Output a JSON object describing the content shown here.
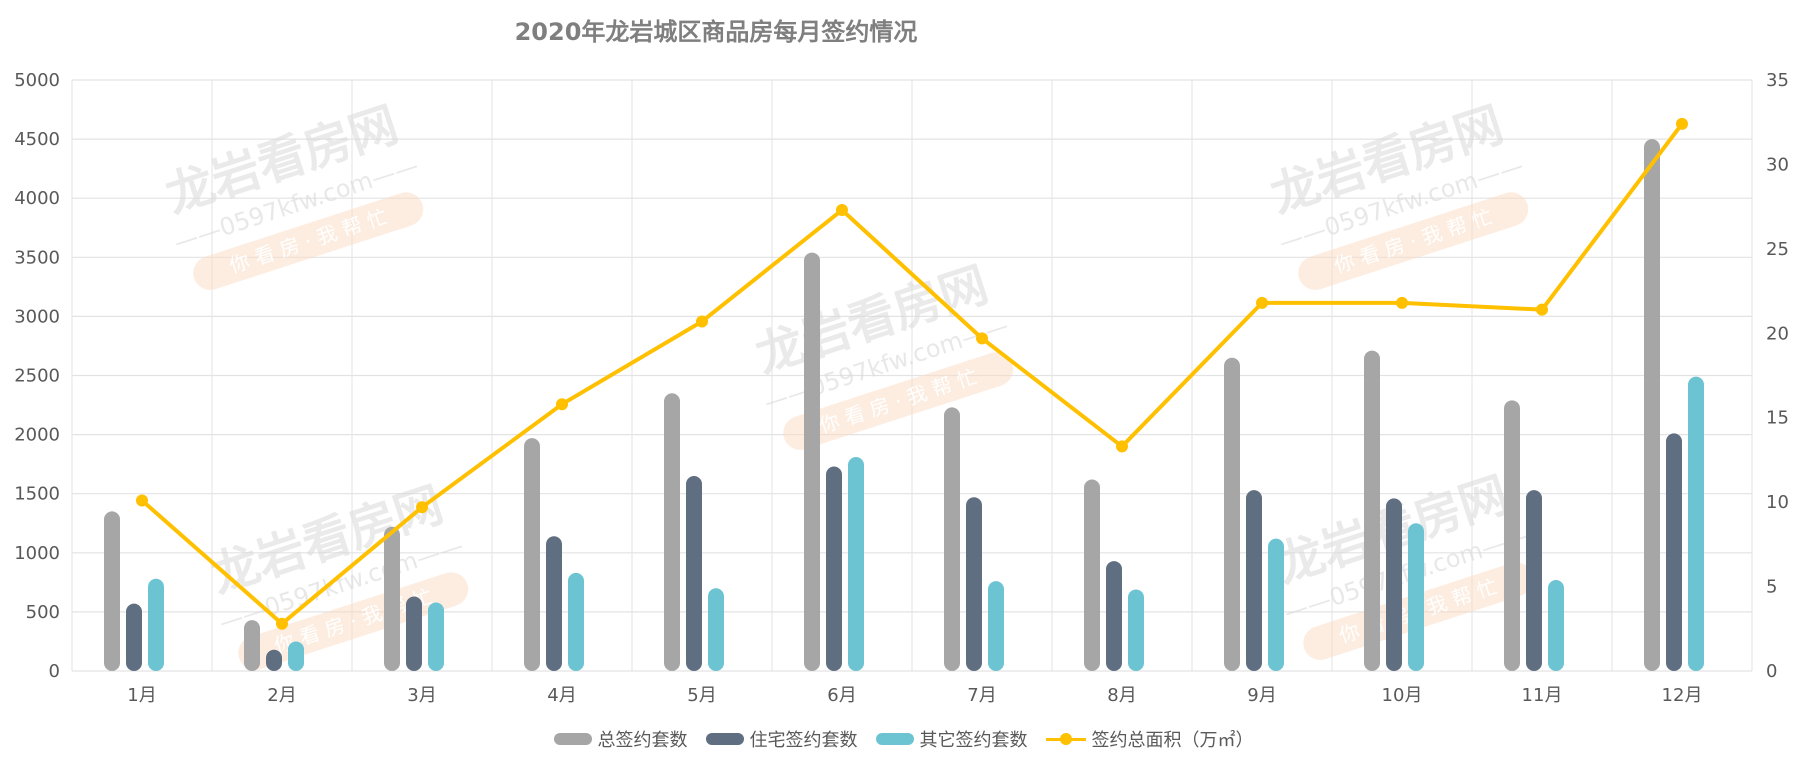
{
  "chart_data": {
    "type": "bar",
    "title": "2020年龙岩城区商品房每月签约情况",
    "categories": [
      "1月",
      "2月",
      "3月",
      "4月",
      "5月",
      "6月",
      "7月",
      "8月",
      "9月",
      "10月",
      "11月",
      "12月"
    ],
    "series": [
      {
        "name": "总签约套数",
        "type": "bar",
        "axis": "left",
        "color": "#A6A6A6",
        "values": [
          1350,
          430,
          1220,
          1970,
          2350,
          3540,
          2230,
          1620,
          2650,
          2710,
          2290,
          4500
        ]
      },
      {
        "name": "住宅签约套数",
        "type": "bar",
        "axis": "left",
        "color": "#5F6E80",
        "values": [
          570,
          180,
          630,
          1140,
          1650,
          1730,
          1470,
          930,
          1530,
          1460,
          1530,
          2010
        ]
      },
      {
        "name": "其它签约套数",
        "type": "bar",
        "axis": "left",
        "color": "#6CC4D2",
        "values": [
          780,
          250,
          580,
          830,
          700,
          1810,
          760,
          690,
          1120,
          1250,
          770,
          2490
        ]
      },
      {
        "name": "签约总面积（万㎡）",
        "type": "line",
        "axis": "right",
        "color": "#FFC000",
        "values": [
          10.1,
          2.8,
          9.7,
          15.8,
          20.7,
          27.3,
          19.7,
          13.3,
          21.8,
          21.8,
          21.4,
          32.4
        ]
      }
    ],
    "ylim": [
      0,
      5000
    ],
    "yticks": [
      0,
      500,
      1000,
      1500,
      2000,
      2500,
      3000,
      3500,
      4000,
      4500,
      5000
    ],
    "y2lim": [
      0,
      35
    ],
    "y2ticks": [
      0,
      5,
      10,
      15,
      20,
      25,
      30,
      35
    ],
    "xlabel": "",
    "ylabel": "",
    "grid": true,
    "legend_position": "bottom"
  },
  "watermark": {
    "brand": "龙岩看房网",
    "site": "0597kfw.com",
    "slogan": "你 看 房 · 我 帮 忙"
  },
  "colors": {
    "grid": "#E3E3E3",
    "axis_text": "#595959",
    "title_text": "#7F7F7F",
    "watermark": "#D9D9D9",
    "watermark_pill": "#FBDCC4"
  }
}
